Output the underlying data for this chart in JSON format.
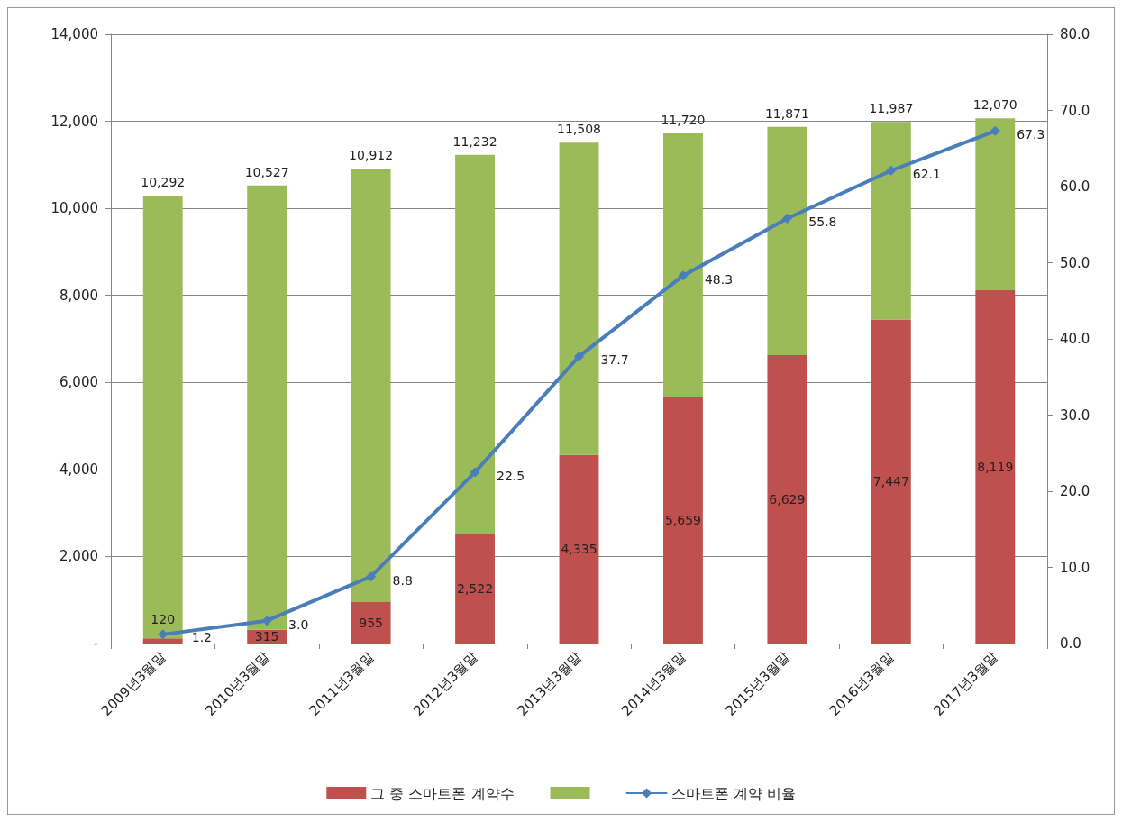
{
  "chart_data": {
    "type": "bar",
    "categories": [
      "2009년3월말",
      "2010년3월말",
      "2011년3월말",
      "2012년3월말",
      "2013년3월말",
      "2014년3월말",
      "2015년3월말",
      "2016년3월말",
      "2017년3월말"
    ],
    "stacked": true,
    "series": [
      {
        "name": "그 중 스마트폰 계약수",
        "color": "#c0504d",
        "values": [
          120,
          315,
          955,
          2522,
          4335,
          5659,
          6629,
          7447,
          8119
        ],
        "value_labels": [
          "120",
          "315",
          "955",
          "2,522",
          "4,335",
          "5,659",
          "6,629",
          "7,447",
          "8,119"
        ]
      },
      {
        "color": "#9bbb59",
        "values": [
          10172,
          10212,
          9957,
          8710,
          7173,
          6061,
          5242,
          4540,
          3951
        ]
      },
      {
        "name": "스마트폰 계약 비율",
        "type": "line",
        "axis": "y2",
        "color": "#4a7ebb",
        "values": [
          1.2,
          3.0,
          8.8,
          22.5,
          37.7,
          48.3,
          55.8,
          62.1,
          67.3
        ],
        "value_labels": [
          "1.2",
          "3.0",
          "8.8",
          "22.5",
          "37.7",
          "48.3",
          "55.8",
          "62.1",
          "67.3"
        ]
      }
    ],
    "totals": [
      "10,292",
      "10,527",
      "10,912",
      "11,232",
      "11,508",
      "11,720",
      "11,871",
      "11,987",
      "12,070"
    ],
    "ylim": [
      0,
      14000
    ],
    "yticks": [
      {
        "value": 0,
        "label": "-"
      },
      {
        "value": 2000,
        "label": "2,000"
      },
      {
        "value": 4000,
        "label": "4,000"
      },
      {
        "value": 6000,
        "label": "6,000"
      },
      {
        "value": 8000,
        "label": "8,000"
      },
      {
        "value": 10000,
        "label": "10,000"
      },
      {
        "value": 12000,
        "label": "12,000"
      },
      {
        "value": 14000,
        "label": "14,000"
      }
    ],
    "y2lim": [
      0,
      80
    ],
    "y2ticks": [
      {
        "value": 0,
        "label": "0.0"
      },
      {
        "value": 10,
        "label": "10.0"
      },
      {
        "value": 20,
        "label": "20.0"
      },
      {
        "value": 30,
        "label": "30.0"
      },
      {
        "value": 40,
        "label": "40.0"
      },
      {
        "value": 50,
        "label": "50.0"
      },
      {
        "value": 60,
        "label": "60.0"
      },
      {
        "value": 70,
        "label": "70.0"
      },
      {
        "value": 80,
        "label": "80.0"
      }
    ],
    "grid": "y",
    "legend": "bottom",
    "marker": "diamond"
  }
}
